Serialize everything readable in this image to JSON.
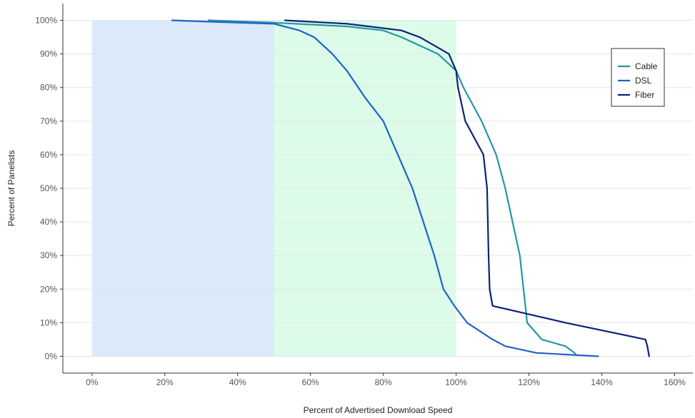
{
  "chart_data": {
    "type": "line",
    "xlabel": "Percent of Advertised Download Speed",
    "ylabel": "Percent of Panelists",
    "xlim": [
      -8,
      165
    ],
    "ylim": [
      -5,
      105
    ],
    "x_ticks": [
      0,
      20,
      40,
      60,
      80,
      100,
      120,
      140,
      160
    ],
    "x_tick_labels": [
      "0%",
      "20%",
      "40%",
      "60%",
      "80%",
      "100%",
      "120%",
      "140%",
      "160%"
    ],
    "y_ticks": [
      0,
      10,
      20,
      30,
      40,
      50,
      60,
      70,
      80,
      90,
      100
    ],
    "y_tick_labels": [
      "0%",
      "10%",
      "20%",
      "30%",
      "40%",
      "50%",
      "60%",
      "70%",
      "80%",
      "90%",
      "100%"
    ],
    "grid": "horizontal",
    "legend_position": "top-right",
    "shaded_regions": [
      {
        "x_from": 0,
        "x_to": 50,
        "y_from": 0,
        "y_to": 100,
        "color": "#dbe9fb"
      },
      {
        "x_from": 50,
        "x_to": 100,
        "y_from": 0,
        "y_to": 100,
        "color": "#dcfbe9"
      }
    ],
    "series": [
      {
        "name": "Cable",
        "color": "#2596a6",
        "points": [
          [
            32,
            100
          ],
          [
            50,
            99.3
          ],
          [
            70,
            98.2
          ],
          [
            80,
            97
          ],
          [
            85,
            95
          ],
          [
            95,
            90
          ],
          [
            100,
            85
          ],
          [
            102,
            80
          ],
          [
            107,
            70
          ],
          [
            111,
            60
          ],
          [
            113.5,
            50
          ],
          [
            115.5,
            40
          ],
          [
            117.5,
            30
          ],
          [
            118.5,
            20
          ],
          [
            119,
            15
          ],
          [
            119.5,
            10
          ],
          [
            123.5,
            5
          ],
          [
            130,
            3
          ],
          [
            132.5,
            1
          ],
          [
            133,
            0.3
          ]
        ]
      },
      {
        "name": "DSL",
        "color": "#1f63c9",
        "points": [
          [
            22,
            100
          ],
          [
            35,
            99.5
          ],
          [
            50,
            99
          ],
          [
            57,
            97
          ],
          [
            61,
            95
          ],
          [
            66,
            90
          ],
          [
            70,
            85
          ],
          [
            75,
            77
          ],
          [
            80,
            70
          ],
          [
            84,
            60
          ],
          [
            88,
            50
          ],
          [
            91,
            40
          ],
          [
            94,
            30
          ],
          [
            96.5,
            20
          ],
          [
            99.5,
            15
          ],
          [
            103,
            10
          ],
          [
            110,
            5
          ],
          [
            113.5,
            3
          ],
          [
            122,
            1
          ],
          [
            139,
            0
          ]
        ]
      },
      {
        "name": "Fiber",
        "color": "#0e2275",
        "points": [
          [
            53,
            100
          ],
          [
            70,
            99
          ],
          [
            85,
            97
          ],
          [
            90,
            95
          ],
          [
            98,
            90
          ],
          [
            100,
            85
          ],
          [
            100.5,
            80
          ],
          [
            102.5,
            70
          ],
          [
            107.5,
            60
          ],
          [
            108.5,
            50
          ],
          [
            108.7,
            40
          ],
          [
            108.9,
            30
          ],
          [
            109.2,
            20
          ],
          [
            110,
            15
          ],
          [
            130,
            10
          ],
          [
            152,
            5
          ],
          [
            152.5,
            3
          ],
          [
            153,
            0
          ]
        ]
      }
    ]
  }
}
